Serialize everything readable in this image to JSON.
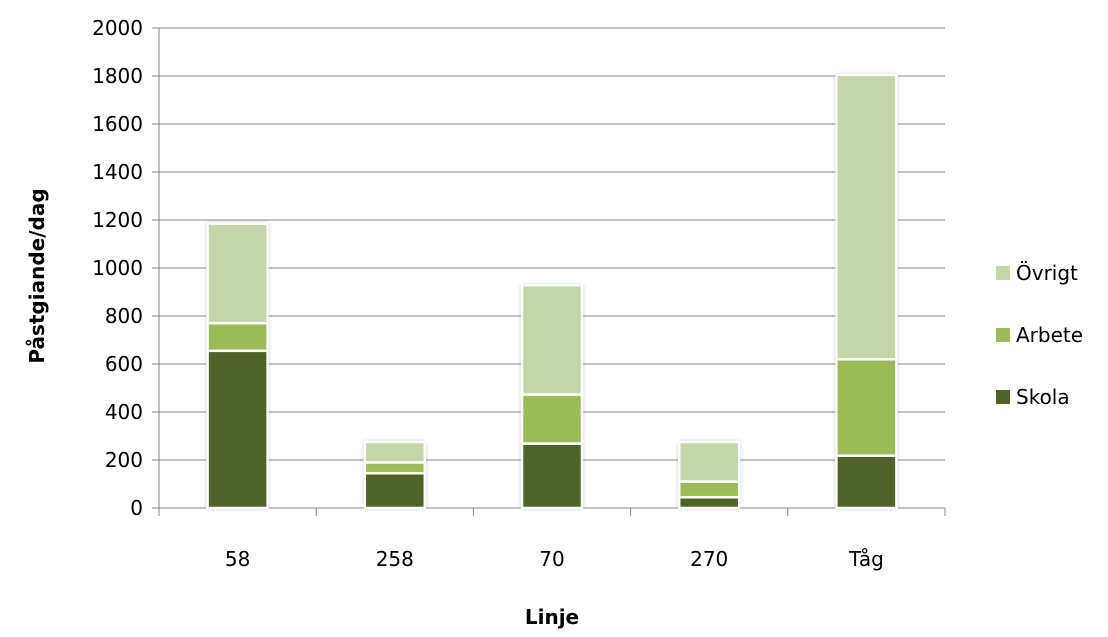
{
  "chart_data": {
    "type": "bar",
    "stacked": true,
    "title": "",
    "xlabel": "Linje",
    "ylabel": "Påstgiande/dag",
    "categories": [
      "58",
      "258",
      "70",
      "270",
      "Tåg"
    ],
    "series": [
      {
        "name": "Skola",
        "color": "#4f6228",
        "values": [
          655,
          145,
          268,
          45,
          218
        ]
      },
      {
        "name": "Arbete",
        "color": "#9bbb59",
        "values": [
          115,
          45,
          205,
          65,
          402
        ]
      },
      {
        "name": "Övrigt",
        "color": "#c4d6a7",
        "values": [
          415,
          85,
          455,
          165,
          1185
        ]
      }
    ],
    "ylim": [
      0,
      2000
    ],
    "yticks": [
      "0",
      "200",
      "400",
      "600",
      "800",
      "1000",
      "1200",
      "1400",
      "1600",
      "1800",
      "2000"
    ],
    "grid": true,
    "legend_position": "right",
    "legend_order": [
      "Övrigt",
      "Arbete",
      "Skola"
    ]
  }
}
